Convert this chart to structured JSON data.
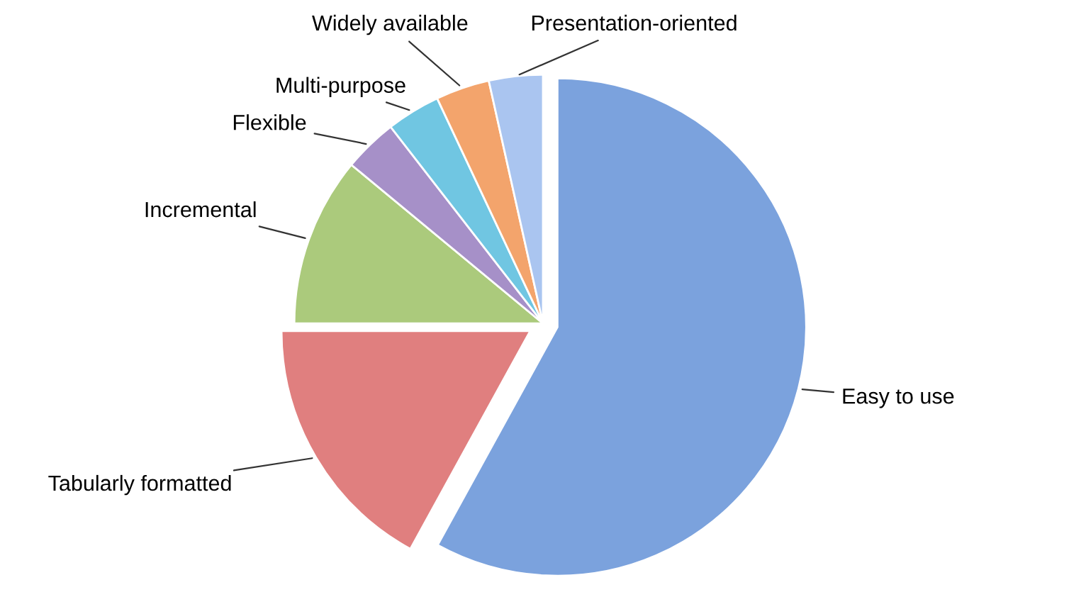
{
  "chart_data": {
    "type": "pie",
    "categories": [
      "Easy to use",
      "Tabularly formatted",
      "Incremental",
      "Flexible",
      "Multi-purpose",
      "Widely available",
      "Presentation-oriented"
    ],
    "values": [
      58,
      17,
      11,
      3.5,
      3.5,
      3.5,
      3.5
    ],
    "colors": [
      "#7ba2dd",
      "#e07f7f",
      "#abca7c",
      "#a690c8",
      "#70c6e2",
      "#f3a46c",
      "#aac5f0"
    ],
    "legend": false
  }
}
